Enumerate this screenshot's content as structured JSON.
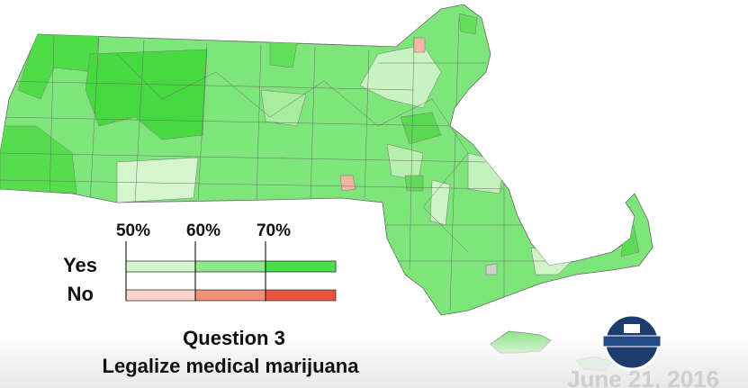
{
  "legend": {
    "ticks": [
      "50%",
      "60%",
      "70%"
    ],
    "rows": [
      "Yes",
      "No"
    ]
  },
  "caption": {
    "title": "Question 3",
    "subtitle": "Legalize medical marijuana"
  },
  "date": "June 21, 2016"
}
